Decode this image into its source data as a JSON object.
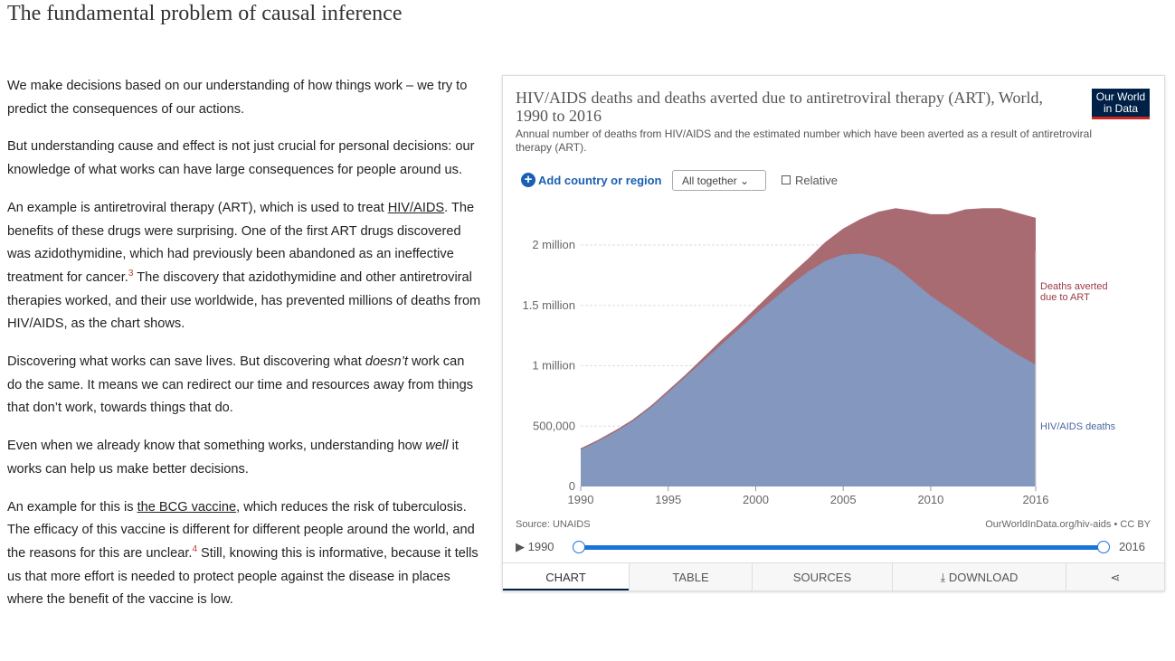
{
  "article": {
    "title": "The fundamental problem of causal inference",
    "paragraphs": [
      [
        "We make decisions based on our understanding of how things work – we try to predict the consequences of our actions."
      ],
      [
        "But understanding cause and effect is not just crucial for personal decisions: our knowledge of what works can have large consequences for people around us."
      ],
      [
        "An example is antiretroviral therapy (ART), which is used to treat ",
        "HIV/AIDS",
        ". The benefits of these drugs were surprising. One of the first ART drugs discovered was azidothymidine, which had previously been abandoned as an ineffective treatment for cancer.",
        "3",
        " The discovery that azidothymidine and other antiretroviral therapies worked, and their use worldwide, has prevented millions of deaths from HIV/AIDS, as the chart shows."
      ],
      [
        "Discovering what works can save lives. But discovering what ",
        "doesn’t",
        " work can do the same. It means we can redirect our time and resources away from things that don’t work, towards things that do."
      ],
      [
        "Even when we already know that something works, understanding how ",
        "well",
        " it works can help us make better decisions."
      ],
      [
        "An example for this is ",
        "the BCG vaccine",
        ", which reduces the risk of tuberculosis. The efficacy of this vaccine is different for different people around the world, and the reasons for this are unclear.",
        "4",
        " Still, knowing this is informative, because it tells us that more effort is needed to protect people against the disease in places where the benefit of the vaccine is low."
      ]
    ]
  },
  "widget": {
    "logo": [
      "Our World",
      "in Data"
    ],
    "add_country": "Add country or region",
    "mode": "All together",
    "relative": "Relative",
    "source": "Source: UNAIDS",
    "url": "OurWorldInData.org/hiv-aids • CC BY",
    "timeline": {
      "start": 1990,
      "end": 2016
    },
    "tabs": [
      "CHART",
      "TABLE",
      "SOURCES",
      "DOWNLOAD"
    ]
  },
  "chart_data": {
    "type": "stacked_area",
    "title": "HIV/AIDS deaths and deaths averted due to antiretroviral therapy (ART), World, 1990 to 2016",
    "subtitle": "Annual number of deaths from HIV/AIDS and the estimated number which have been averted as a result of antiretroviral therapy (ART).",
    "x": [
      1990,
      1991,
      1992,
      1993,
      1994,
      1995,
      1996,
      1997,
      1998,
      1999,
      2000,
      2001,
      2002,
      2003,
      2004,
      2005,
      2006,
      2007,
      2008,
      2009,
      2010,
      2011,
      2012,
      2013,
      2014,
      2015,
      2016
    ],
    "series": [
      {
        "name": "HIV/AIDS deaths",
        "color": "#8497bf",
        "values": [
          310000,
          380000,
          460000,
          550000,
          660000,
          780000,
          910000,
          1040000,
          1170000,
          1300000,
          1430000,
          1550000,
          1670000,
          1780000,
          1870000,
          1920000,
          1930000,
          1900000,
          1820000,
          1700000,
          1580000,
          1480000,
          1380000,
          1280000,
          1180000,
          1090000,
          1010000
        ]
      },
      {
        "name": "Deaths averted due to ART",
        "color": "#a96b72",
        "values": [
          0,
          0,
          0,
          0,
          0,
          10000,
          10000,
          20000,
          30000,
          30000,
          40000,
          60000,
          80000,
          100000,
          150000,
          210000,
          280000,
          370000,
          480000,
          580000,
          670000,
          770000,
          910000,
          1020000,
          1120000,
          1170000,
          1210000
        ]
      }
    ],
    "xlim": [
      1990,
      2016
    ],
    "xticks": [
      1990,
      1995,
      2000,
      2005,
      2010,
      2016
    ],
    "ylim": [
      0,
      2400000
    ],
    "yticks": [
      0,
      {
        "value": 500000,
        "label": "500,000"
      },
      {
        "value": 1000000,
        "label": "1 million"
      },
      {
        "value": 1500000,
        "label": "1.5 million"
      },
      {
        "value": 2000000,
        "label": "2 million"
      }
    ],
    "grid": true
  }
}
